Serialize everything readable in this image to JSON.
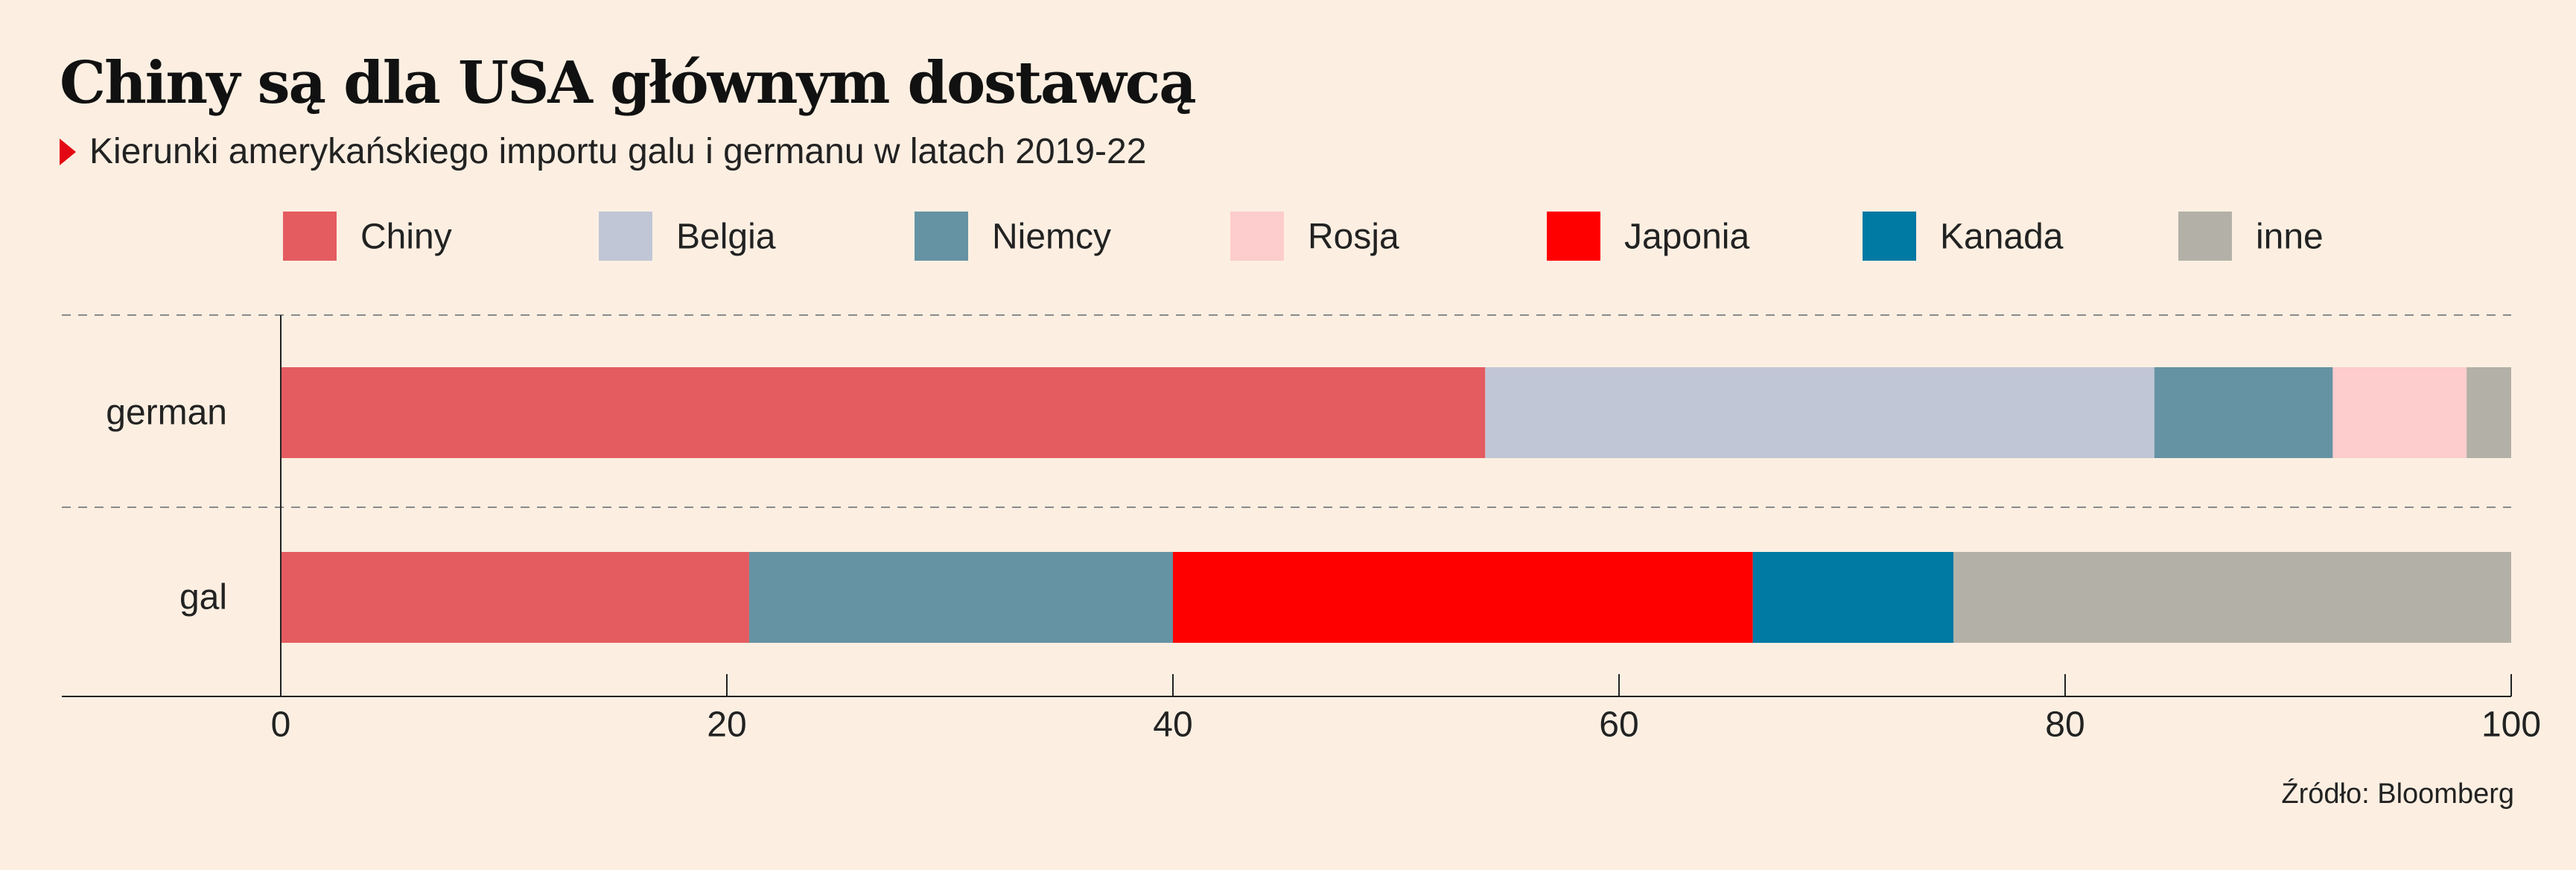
{
  "title": "Chiny są dla USA głównym dostawcą",
  "subtitle": "Kierunki amerykańskiego importu galu i germanu w latach 2019-22",
  "source": "Źródło: Bloomberg",
  "colors": {
    "background": "#fcefe2",
    "marker": "#e30613"
  },
  "chart_data": {
    "type": "bar",
    "orientation": "horizontal",
    "stacked": true,
    "categories": [
      "german",
      "gal"
    ],
    "series": [
      {
        "name": "Chiny",
        "color": "#e45c60",
        "values": [
          54,
          21
        ]
      },
      {
        "name": "Belgia",
        "color": "#c1c6d6",
        "values": [
          30,
          0
        ]
      },
      {
        "name": "Niemcy",
        "color": "#6593a3",
        "values": [
          8,
          19
        ]
      },
      {
        "name": "Rosja",
        "color": "#fdcccc",
        "values": [
          6,
          0
        ]
      },
      {
        "name": "Japonia",
        "color": "#ff0000",
        "values": [
          0,
          26
        ]
      },
      {
        "name": "Kanada",
        "color": "#0079a3",
        "values": [
          0,
          9
        ]
      },
      {
        "name": "inne",
        "color": "#b3b1a7",
        "values": [
          2,
          25
        ]
      }
    ],
    "xlim": [
      0,
      100
    ],
    "xticks": [
      0,
      20,
      40,
      60,
      80,
      100
    ],
    "xlabel": "",
    "ylabel": "",
    "legend": "top",
    "grid": false
  }
}
